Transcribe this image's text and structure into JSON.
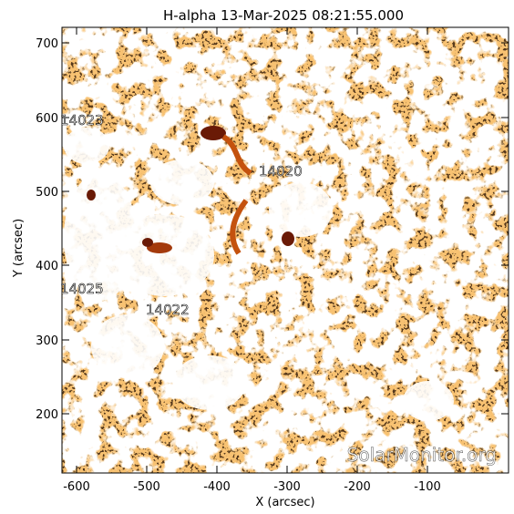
{
  "title": "H-alpha 13-Mar-2025 08:21:55.000",
  "x_axis": {
    "label": "X (arcsec)",
    "ticks": [
      "-600",
      "-500",
      "-400",
      "-300",
      "-200",
      "-100"
    ]
  },
  "y_axis": {
    "label": "Y (arcsec)",
    "ticks": [
      "200",
      "300",
      "400",
      "500",
      "600",
      "700"
    ]
  },
  "regions": [
    "14023",
    "14020",
    "14025",
    "14022"
  ],
  "watermark": "SolarMonitor.org",
  "colors": {
    "background": "#ffffff",
    "texture_orange": "#f08a2c",
    "texture_dark": "#1a0a02",
    "active_dark": "#6a1a06"
  }
}
